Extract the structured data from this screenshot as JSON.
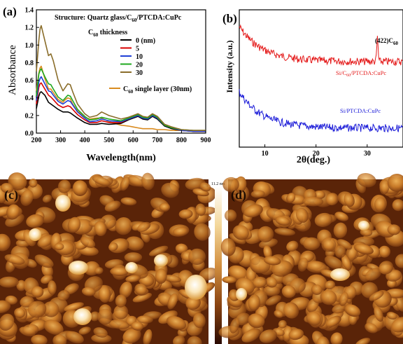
{
  "figure": {
    "panels": {
      "a": "(a)",
      "b": "(b)",
      "c": "(c)",
      "d": "(d)"
    },
    "colorbar_max": "11.2 nm"
  },
  "chart_data": [
    {
      "type": "line",
      "panel": "(a)",
      "title": "Structure: Quartz glass/C60/PTCDA:CuPc",
      "title_parts": {
        "pre": "Structure: Quartz glass/C",
        "sub": "60",
        "post": "/PTCDA:CuPc"
      },
      "xlabel": "Wavelength(nm)",
      "ylabel": "Absorbance",
      "xlim": [
        200,
        900
      ],
      "ylim": [
        0,
        1.4
      ],
      "xticks": [
        "200",
        "300",
        "400",
        "500",
        "600",
        "700",
        "800",
        "900"
      ],
      "yticks": [
        "0.0",
        "0.2",
        "0.4",
        "0.6",
        "0.8",
        "1.0",
        "1.2",
        "1.4"
      ],
      "legend_title": {
        "pre": "C",
        "sub": "60",
        "post": " thickness"
      },
      "x": [
        200,
        210,
        215,
        220,
        235,
        250,
        260,
        270,
        290,
        310,
        320,
        330,
        340,
        350,
        370,
        400,
        420,
        450,
        470,
        500,
        550,
        580,
        600,
        620,
        640,
        660,
        680,
        700,
        730,
        760,
        800,
        850,
        900
      ],
      "series": [
        {
          "name": "0 (nm)",
          "color": "#000000",
          "values": [
            0.28,
            0.42,
            0.46,
            0.47,
            0.43,
            0.35,
            0.33,
            0.31,
            0.27,
            0.24,
            0.24,
            0.24,
            0.23,
            0.21,
            0.17,
            0.12,
            0.1,
            0.1,
            0.11,
            0.1,
            0.11,
            0.15,
            0.17,
            0.19,
            0.16,
            0.15,
            0.19,
            0.16,
            0.08,
            0.05,
            0.03,
            0.02,
            0.02
          ]
        },
        {
          "name": "5",
          "color": "#d80000",
          "values": [
            0.33,
            0.52,
            0.56,
            0.57,
            0.5,
            0.43,
            0.41,
            0.38,
            0.32,
            0.29,
            0.3,
            0.31,
            0.3,
            0.27,
            0.21,
            0.15,
            0.12,
            0.12,
            0.14,
            0.12,
            0.12,
            0.16,
            0.18,
            0.2,
            0.17,
            0.16,
            0.2,
            0.17,
            0.09,
            0.06,
            0.03,
            0.02,
            0.02
          ]
        },
        {
          "name": "10",
          "color": "#1f3fd6",
          "values": [
            0.37,
            0.58,
            0.62,
            0.64,
            0.56,
            0.48,
            0.47,
            0.43,
            0.36,
            0.33,
            0.35,
            0.37,
            0.36,
            0.32,
            0.24,
            0.17,
            0.13,
            0.14,
            0.16,
            0.14,
            0.13,
            0.16,
            0.18,
            0.2,
            0.17,
            0.16,
            0.2,
            0.17,
            0.09,
            0.06,
            0.03,
            0.02,
            0.02
          ]
        },
        {
          "name": "20",
          "color": "#1fa81f",
          "values": [
            0.42,
            0.67,
            0.71,
            0.73,
            0.64,
            0.56,
            0.55,
            0.5,
            0.41,
            0.37,
            0.4,
            0.43,
            0.42,
            0.37,
            0.27,
            0.19,
            0.15,
            0.16,
            0.18,
            0.16,
            0.14,
            0.17,
            0.19,
            0.21,
            0.18,
            0.17,
            0.21,
            0.18,
            0.09,
            0.06,
            0.04,
            0.03,
            0.03
          ]
        },
        {
          "name": "30",
          "color": "#8a6d2a",
          "values": [
            0.7,
            1.05,
            1.18,
            1.22,
            1.05,
            0.88,
            0.9,
            0.82,
            0.6,
            0.48,
            0.52,
            0.56,
            0.55,
            0.47,
            0.33,
            0.22,
            0.18,
            0.2,
            0.24,
            0.2,
            0.16,
            0.18,
            0.2,
            0.22,
            0.19,
            0.18,
            0.22,
            0.19,
            0.1,
            0.07,
            0.04,
            0.03,
            0.03
          ]
        },
        {
          "name": "C60 single layer (30nm)",
          "label_parts": {
            "pre": "C",
            "sub": "60",
            "post": " single layer (30nm)"
          },
          "color": "#d98b1f",
          "values": [
            0.48,
            0.68,
            0.74,
            0.76,
            0.62,
            0.5,
            0.5,
            0.46,
            0.38,
            0.35,
            0.38,
            0.4,
            0.39,
            0.33,
            0.25,
            0.18,
            0.16,
            0.17,
            0.17,
            0.13,
            0.09,
            0.08,
            0.07,
            0.06,
            0.05,
            0.05,
            0.05,
            0.04,
            0.04,
            0.03,
            0.03,
            0.03,
            0.03
          ]
        }
      ],
      "grid": false
    },
    {
      "type": "line",
      "panel": "(b)",
      "xlabel": "2θ(deg.)",
      "ylabel": "Intensity (a.u.)",
      "xlim": [
        5,
        37
      ],
      "xticks": [
        "10",
        "20",
        "30"
      ],
      "annotation": {
        "pre": "(422)C",
        "sub": "60"
      },
      "series": [
        {
          "name": "Si/C60/PTCDA:CuPc",
          "label_parts": {
            "pre": "Si/C",
            "sub": "60",
            "post": "/PTCDA:CuPc"
          },
          "color": "#e41a1a",
          "peak_x": 32
        },
        {
          "name": "Si/PTCDA:CuPc",
          "label": "Si/PTCDA:CuPc",
          "color": "#1a1ad8"
        }
      ],
      "grid": false
    }
  ]
}
